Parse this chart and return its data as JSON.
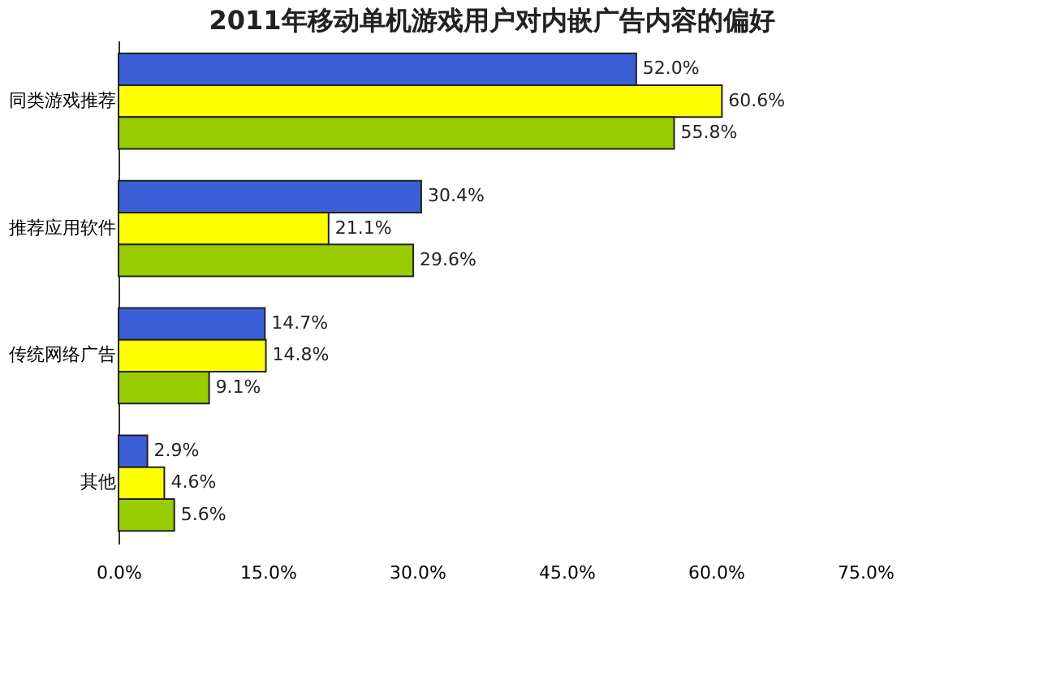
{
  "chart_data": {
    "type": "bar",
    "orientation": "horizontal",
    "title": "2011年移动单机游戏用户对内嵌广告内容的偏好",
    "categories": [
      "同类游戏推荐",
      "推荐应用软件",
      "传统网络广告",
      "其他"
    ],
    "series": [
      {
        "color": "#3b5fd6",
        "values": [
          52.0,
          30.4,
          14.7,
          2.9
        ],
        "value_labels": [
          "52.0%",
          "30.4%",
          "14.7%",
          "2.9%"
        ]
      },
      {
        "color": "#ffff00",
        "values": [
          60.6,
          21.1,
          14.8,
          4.6
        ],
        "value_labels": [
          "60.6%",
          "21.1%",
          "14.8%",
          "4.6%"
        ]
      },
      {
        "color": "#99cc00",
        "values": [
          55.8,
          29.6,
          9.1,
          5.6
        ],
        "value_labels": [
          "55.8%",
          "29.6%",
          "9.1%",
          "5.6%"
        ]
      }
    ],
    "xlim": [
      0,
      75
    ],
    "xticks": [
      {
        "value": 0,
        "label": "0.0%"
      },
      {
        "value": 15,
        "label": "15.0%"
      },
      {
        "value": 30,
        "label": "30.0%"
      },
      {
        "value": 45,
        "label": "45.0%"
      },
      {
        "value": 60,
        "label": "60.0%"
      },
      {
        "value": 75,
        "label": "75.0%"
      }
    ],
    "grid": false,
    "legend": false
  }
}
